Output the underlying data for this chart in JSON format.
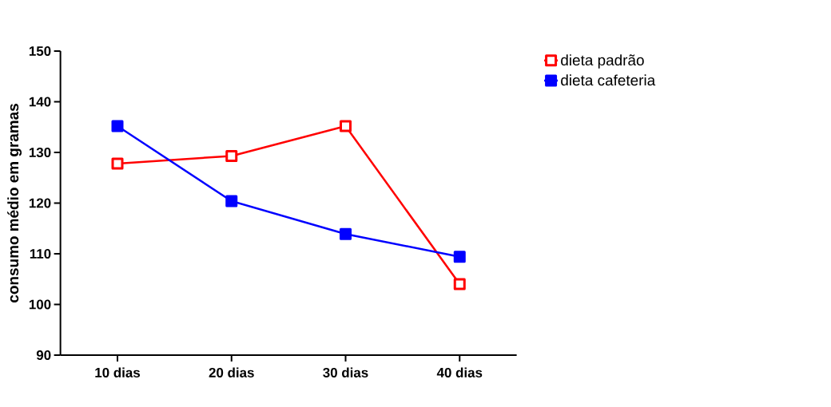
{
  "chart_data": {
    "type": "line",
    "ylabel": "consumo médio em gramas",
    "categories": [
      "10 dias",
      "20 dias",
      "30 dias",
      "40 dias"
    ],
    "series": [
      {
        "name": "dieta padrão",
        "color": "#ff0000",
        "marker": "square",
        "values": [
          127.8,
          129.3,
          135.2,
          104.0
        ]
      },
      {
        "name": "dieta cafeteria",
        "color": "#0000ff",
        "marker": "square",
        "values": [
          135.2,
          120.4,
          113.9,
          109.4
        ]
      }
    ],
    "ylim": [
      90,
      150
    ],
    "yticks": [
      90,
      100,
      110,
      120,
      130,
      140,
      150
    ],
    "grid": false,
    "legend": "right",
    "line_style": "solid"
  }
}
